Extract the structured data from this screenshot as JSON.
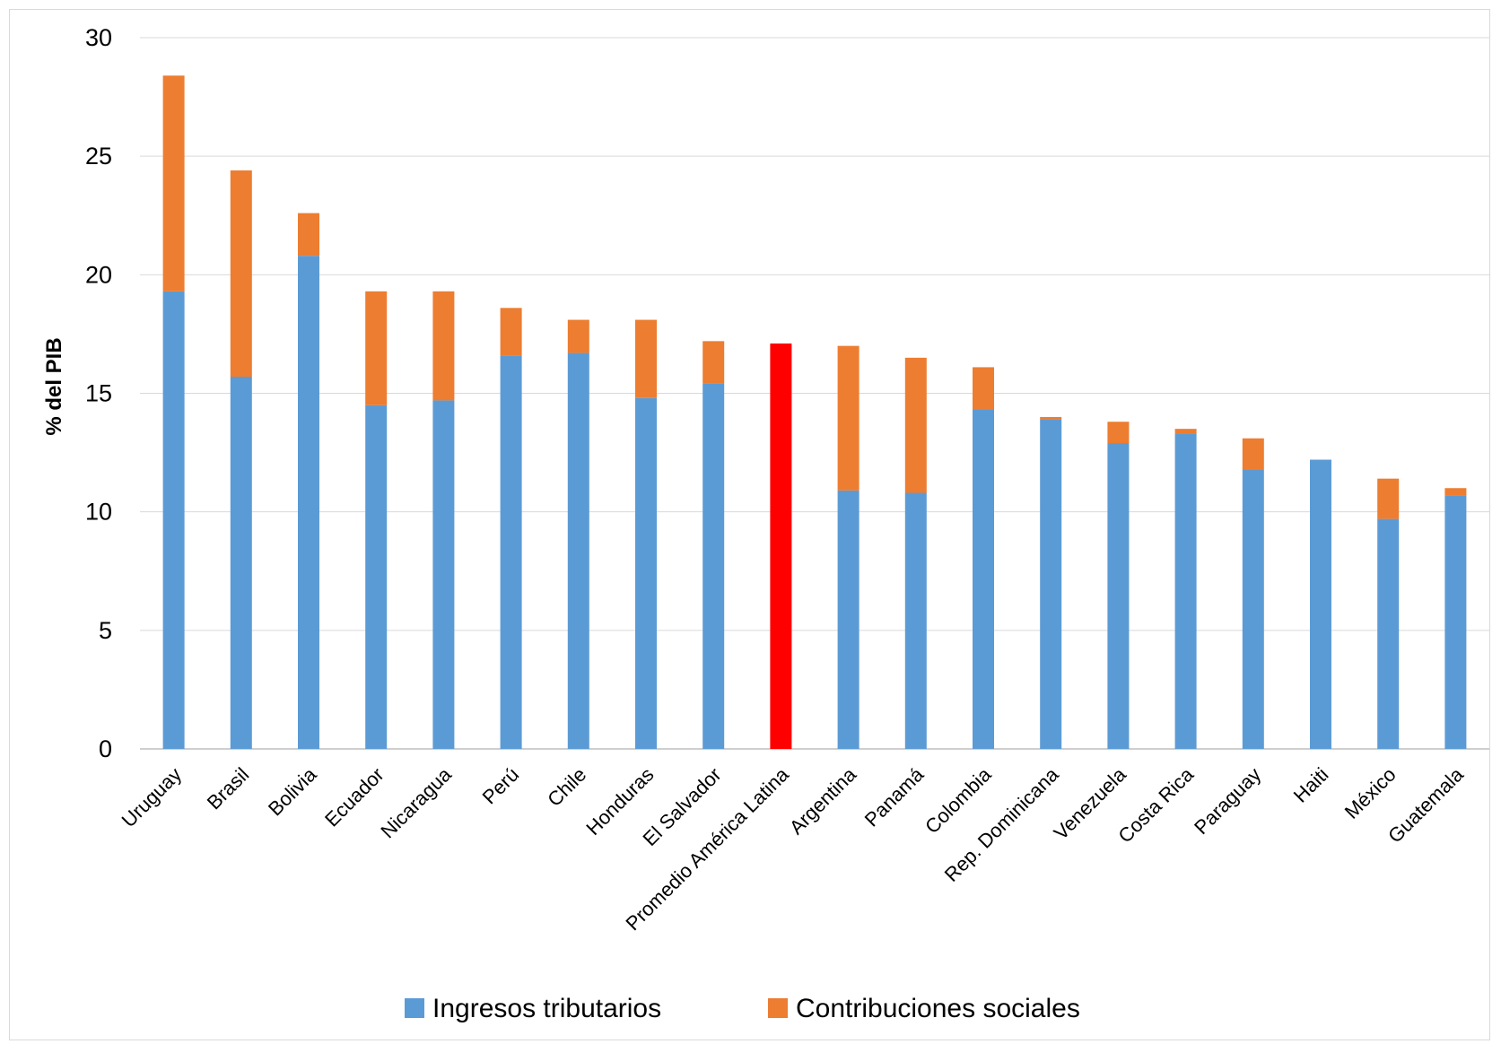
{
  "chart_data": {
    "type": "bar",
    "stacked": true,
    "title": "",
    "xlabel": "",
    "ylabel": "% del PIB",
    "ylim": [
      0,
      30
    ],
    "yticks": [
      0,
      5,
      10,
      15,
      20,
      25,
      30
    ],
    "grid": true,
    "legend_position": "bottom",
    "categories": [
      "Uruguay",
      "Brasil",
      "Bolivia",
      "Ecuador",
      "Nicaragua",
      "Perú",
      "Chile",
      "Honduras",
      "El Salvador",
      "Promedio América Latina",
      "Argentina",
      "Panamá",
      "Colombia",
      "Rep. Dominicana",
      "Venezuela",
      "Costa Rica",
      "Paraguay",
      "Haiti",
      "México",
      "Guatemala"
    ],
    "series": [
      {
        "name": "Ingresos tributarios",
        "color": "#5b9bd5",
        "values": [
          19.3,
          15.7,
          20.8,
          14.5,
          14.7,
          16.6,
          16.7,
          14.8,
          15.4,
          17.1,
          10.9,
          10.8,
          14.3,
          13.9,
          12.9,
          13.3,
          11.8,
          12.2,
          9.7,
          10.7
        ]
      },
      {
        "name": "Contribuciones sociales",
        "color": "#ed7d31",
        "values": [
          9.1,
          8.7,
          1.8,
          4.8,
          4.6,
          2.0,
          1.4,
          3.3,
          1.8,
          0,
          6.1,
          5.7,
          1.8,
          0.1,
          0.9,
          0.2,
          1.3,
          0,
          1.7,
          0.3
        ]
      }
    ],
    "highlight": {
      "category": "Promedio América Latina",
      "color": "#ff0000"
    }
  },
  "colors": {
    "grid": "#d9d9d9",
    "axis": "#bfbfbf"
  }
}
